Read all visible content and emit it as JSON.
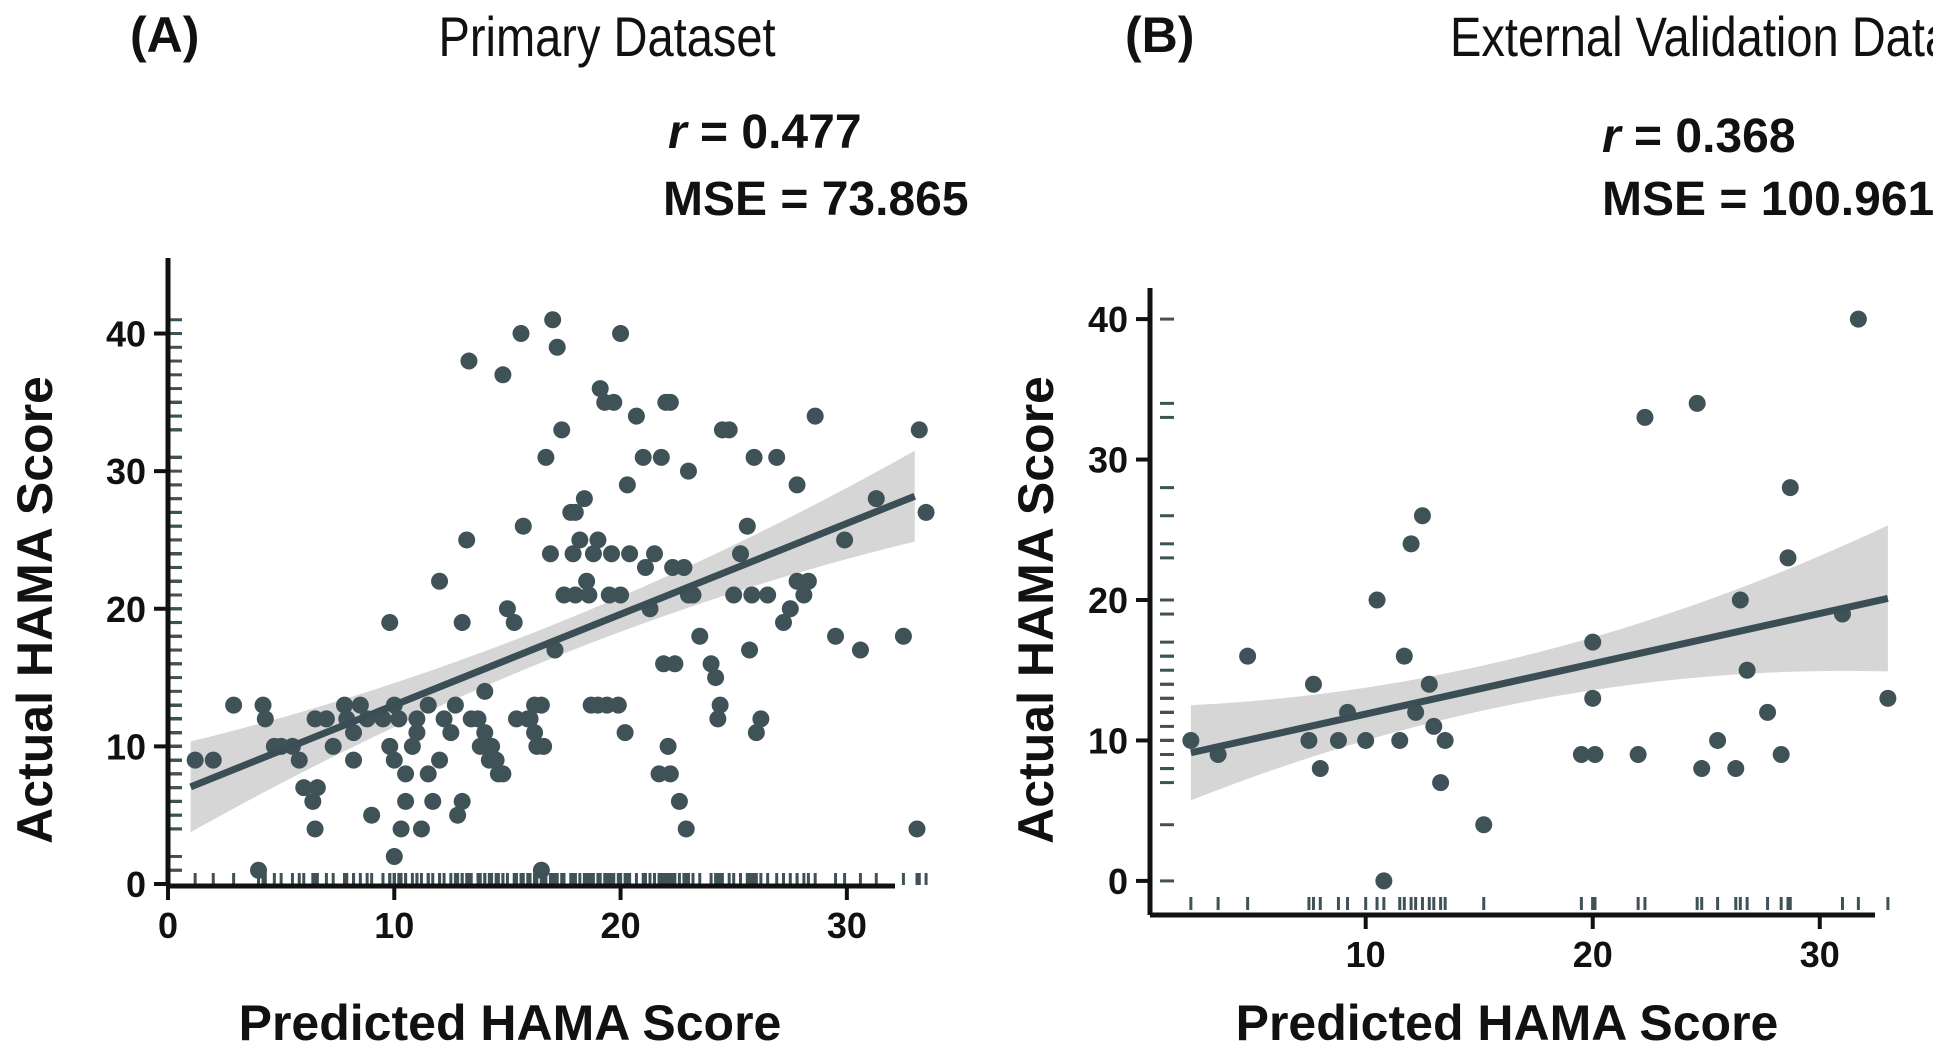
{
  "chart_data": [
    {
      "type": "scatter",
      "panel_label": "(A)",
      "title": "Primary Dataset",
      "stats": {
        "r_symbol": "r",
        "r_text": " = 0.477",
        "mse_text": "MSE = 73.865"
      },
      "xlabel": "Predicted HAMA Score",
      "ylabel": "Actual HAMA Score",
      "xlim": [
        0,
        35
      ],
      "ylim": [
        0,
        42
      ],
      "xticks": [
        0,
        10,
        20,
        30
      ],
      "yticks": [
        0,
        10,
        20,
        30,
        40
      ],
      "fit": {
        "slope": 0.66,
        "intercept": 6.4,
        "x_range": [
          1,
          33
        ],
        "ci_half_at_ends": 3.3,
        "ci_half_at_mean": 1.2,
        "x_mean": 17
      },
      "points": [
        [
          1.2,
          9
        ],
        [
          2,
          9
        ],
        [
          2.9,
          13
        ],
        [
          4,
          1
        ],
        [
          4.2,
          13
        ],
        [
          4.3,
          12
        ],
        [
          4.7,
          10
        ],
        [
          5,
          10
        ],
        [
          5.5,
          10
        ],
        [
          5.8,
          9
        ],
        [
          6,
          7
        ],
        [
          6.4,
          6
        ],
        [
          6.6,
          7
        ],
        [
          6.5,
          4
        ],
        [
          6.5,
          12
        ],
        [
          7,
          12
        ],
        [
          7.3,
          10
        ],
        [
          7.8,
          13
        ],
        [
          7.9,
          12
        ],
        [
          8.2,
          11
        ],
        [
          8.2,
          9
        ],
        [
          8.5,
          13
        ],
        [
          8.8,
          12
        ],
        [
          9,
          5
        ],
        [
          9.5,
          12
        ],
        [
          9.8,
          10
        ],
        [
          9.8,
          19
        ],
        [
          10,
          13
        ],
        [
          10,
          9
        ],
        [
          10,
          2
        ],
        [
          10.2,
          12
        ],
        [
          10.3,
          4
        ],
        [
          10.5,
          6
        ],
        [
          10.5,
          8
        ],
        [
          10.8,
          10
        ],
        [
          11,
          11
        ],
        [
          11,
          12
        ],
        [
          11.2,
          4
        ],
        [
          11.5,
          8
        ],
        [
          11.5,
          13
        ],
        [
          11.7,
          6
        ],
        [
          12,
          9
        ],
        [
          12,
          22
        ],
        [
          12.2,
          12
        ],
        [
          12.5,
          11
        ],
        [
          12.7,
          13
        ],
        [
          12.8,
          5
        ],
        [
          13,
          19
        ],
        [
          13,
          6
        ],
        [
          13.2,
          25
        ],
        [
          13.3,
          38
        ],
        [
          13.4,
          12
        ],
        [
          13.7,
          12
        ],
        [
          13.8,
          10
        ],
        [
          14,
          14
        ],
        [
          14,
          11
        ],
        [
          14.2,
          9
        ],
        [
          14.3,
          10
        ],
        [
          14.5,
          9
        ],
        [
          14.6,
          8
        ],
        [
          14.8,
          8
        ],
        [
          14.8,
          37
        ],
        [
          15,
          20
        ],
        [
          15.3,
          19
        ],
        [
          15.4,
          12
        ],
        [
          15.6,
          40
        ],
        [
          15.7,
          26
        ],
        [
          15.9,
          12
        ],
        [
          16,
          12
        ],
        [
          16.2,
          13
        ],
        [
          16.2,
          11
        ],
        [
          16.3,
          10
        ],
        [
          16.5,
          13
        ],
        [
          16.5,
          1
        ],
        [
          16.6,
          10
        ],
        [
          16.7,
          31
        ],
        [
          16.9,
          24
        ],
        [
          17,
          41
        ],
        [
          17.1,
          17
        ],
        [
          17.2,
          39
        ],
        [
          17.4,
          33
        ],
        [
          17.5,
          21
        ],
        [
          17.8,
          27
        ],
        [
          17.9,
          24
        ],
        [
          18,
          21
        ],
        [
          18,
          27
        ],
        [
          18.2,
          25
        ],
        [
          18.4,
          28
        ],
        [
          18.5,
          22
        ],
        [
          18.6,
          21
        ],
        [
          18.7,
          13
        ],
        [
          18.8,
          24
        ],
        [
          19,
          13
        ],
        [
          19,
          25
        ],
        [
          19.1,
          36
        ],
        [
          19.3,
          35
        ],
        [
          19.4,
          13
        ],
        [
          19.5,
          21
        ],
        [
          19.6,
          24
        ],
        [
          19.7,
          35
        ],
        [
          19.9,
          13
        ],
        [
          20,
          40
        ],
        [
          20,
          21
        ],
        [
          20.2,
          11
        ],
        [
          20.3,
          29
        ],
        [
          20.4,
          24
        ],
        [
          20.7,
          34
        ],
        [
          21,
          31
        ],
        [
          21.1,
          23
        ],
        [
          21.3,
          20
        ],
        [
          21.5,
          24
        ],
        [
          21.7,
          8
        ],
        [
          21.8,
          31
        ],
        [
          21.9,
          16
        ],
        [
          22,
          35
        ],
        [
          22.1,
          10
        ],
        [
          22.2,
          35
        ],
        [
          22.3,
          23
        ],
        [
          22.2,
          8
        ],
        [
          22.4,
          16
        ],
        [
          22.6,
          6
        ],
        [
          22.8,
          23
        ],
        [
          23,
          30
        ],
        [
          22.9,
          4
        ],
        [
          23,
          21
        ],
        [
          23.2,
          21
        ],
        [
          23.5,
          18
        ],
        [
          24,
          16
        ],
        [
          24.2,
          15
        ],
        [
          24.3,
          12
        ],
        [
          24.4,
          13
        ],
        [
          24.5,
          33
        ],
        [
          24.8,
          33
        ],
        [
          25,
          21
        ],
        [
          25.3,
          24
        ],
        [
          25.6,
          26
        ],
        [
          25.7,
          17
        ],
        [
          25.8,
          21
        ],
        [
          25.9,
          31
        ],
        [
          26,
          11
        ],
        [
          26.2,
          12
        ],
        [
          26.5,
          21
        ],
        [
          26.9,
          31
        ],
        [
          27.2,
          19
        ],
        [
          27.5,
          20
        ],
        [
          27.8,
          29
        ],
        [
          27.8,
          22
        ],
        [
          28.1,
          21
        ],
        [
          28.3,
          22
        ],
        [
          28.6,
          34
        ],
        [
          29.5,
          18
        ],
        [
          29.9,
          25
        ],
        [
          30.6,
          17
        ],
        [
          31.3,
          28
        ],
        [
          32.5,
          18
        ],
        [
          33.2,
          33
        ],
        [
          33.5,
          27
        ],
        [
          33.1,
          4
        ]
      ]
    },
    {
      "type": "scatter",
      "panel_label": "(B)",
      "title": "External Validation Dataset",
      "stats": {
        "r_symbol": "r",
        "r_text": " = 0.368",
        "mse_text": "MSE = 100.961"
      },
      "xlabel": "Predicted HAMA Score",
      "ylabel": "Actual HAMA Score",
      "xlim": [
        0.5,
        36
      ],
      "ylim": [
        -2,
        42
      ],
      "xticks": [
        10,
        20,
        30
      ],
      "yticks": [
        0,
        10,
        20,
        30,
        40
      ],
      "fit": {
        "slope": 0.358,
        "intercept": 8.3,
        "x_range": [
          2.3,
          33
        ],
        "ci_half_at_ends": 5.2,
        "ci_half_at_mean": 1.6,
        "x_mean": 15
      },
      "points": [
        [
          2.3,
          10
        ],
        [
          3.5,
          9
        ],
        [
          4.8,
          16
        ],
        [
          7.5,
          10
        ],
        [
          7.7,
          14
        ],
        [
          8,
          8
        ],
        [
          8.8,
          10
        ],
        [
          9.2,
          12
        ],
        [
          10,
          10
        ],
        [
          10.5,
          20
        ],
        [
          10.8,
          0
        ],
        [
          11.5,
          10
        ],
        [
          11.7,
          16
        ],
        [
          12,
          24
        ],
        [
          12.2,
          12
        ],
        [
          12.5,
          26
        ],
        [
          12.8,
          14
        ],
        [
          13,
          11
        ],
        [
          13.5,
          10
        ],
        [
          13.3,
          7
        ],
        [
          15.2,
          4
        ],
        [
          19.5,
          9
        ],
        [
          20.1,
          9
        ],
        [
          20,
          17
        ],
        [
          20,
          13
        ],
        [
          22,
          9
        ],
        [
          22.3,
          33
        ],
        [
          24.6,
          34
        ],
        [
          24.8,
          8
        ],
        [
          25.5,
          10
        ],
        [
          26.3,
          8
        ],
        [
          26.5,
          20
        ],
        [
          26.8,
          15
        ],
        [
          27.7,
          12
        ],
        [
          28.3,
          9
        ],
        [
          28.7,
          28
        ],
        [
          28.6,
          23
        ],
        [
          31,
          19
        ],
        [
          31.7,
          40
        ],
        [
          33,
          13
        ]
      ]
    }
  ]
}
